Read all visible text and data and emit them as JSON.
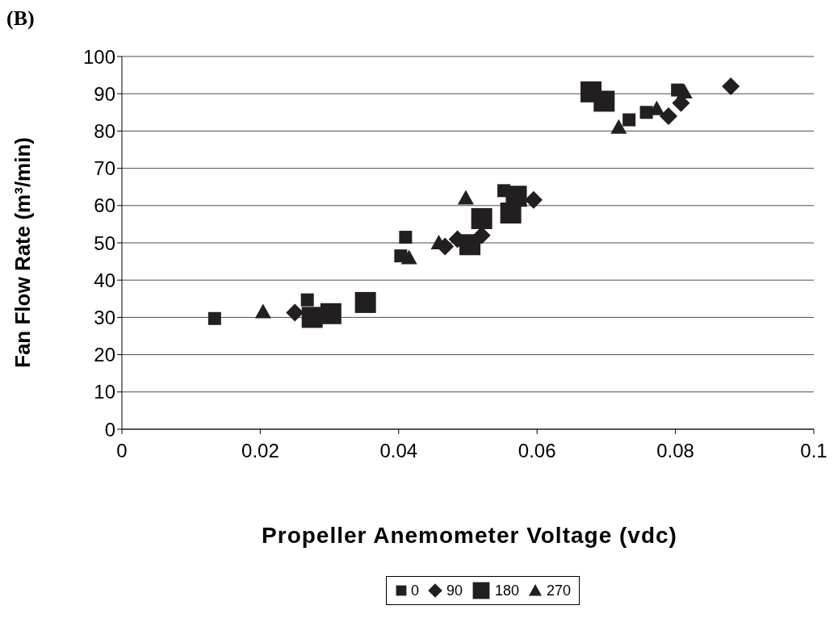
{
  "chart_data": {
    "type": "scatter",
    "title": "(B)",
    "xlabel": "Propeller Anemometer Voltage (vdc)",
    "ylabel": "Fan Flow Rate (m³/min)",
    "xlim": [
      0,
      0.1
    ],
    "xticks": [
      0,
      0.02,
      0.04,
      0.06,
      0.08,
      0.1
    ],
    "ylim": [
      0,
      100
    ],
    "yticks": [
      0,
      10,
      20,
      30,
      40,
      50,
      60,
      70,
      80,
      90,
      100
    ],
    "grid": "y",
    "legend": "bottom",
    "series": [
      {
        "name": "0",
        "color": "#231f20",
        "marker": "square",
        "x": [
          0.0134,
          0.0268,
          0.0403,
          0.041,
          0.0552,
          0.0733,
          0.0758,
          0.0803
        ],
        "values": [
          29.7,
          34.7,
          46.5,
          51.5,
          64,
          83,
          85,
          91
        ]
      },
      {
        "name": "90",
        "color": "#231f20",
        "marker": "diamond",
        "x": [
          0.025,
          0.0275,
          0.0467,
          0.0485,
          0.052,
          0.0595,
          0.079,
          0.0808,
          0.088
        ],
        "values": [
          31.3,
          null,
          49,
          51,
          52,
          61.5,
          84,
          87.5,
          92
        ]
      },
      {
        "name": "180",
        "color": "#231f20",
        "marker": "square",
        "x": [
          0.0275,
          0.0302,
          0.0352,
          0.0503,
          0.052,
          0.0555,
          0.0562,
          0.057,
          0.0678,
          0.0697
        ],
        "values": [
          30,
          31,
          34,
          49.5,
          56.5,
          null,
          58,
          62.5,
          90.5,
          88
        ]
      },
      {
        "name": "270",
        "color": "#231f20",
        "marker": "triangle",
        "x": [
          0.0204,
          0.0415,
          0.0458,
          0.0497,
          0.0718,
          0.0773,
          0.0813
        ],
        "values": [
          31.5,
          46,
          50,
          62,
          81,
          86,
          90.5
        ]
      }
    ]
  }
}
